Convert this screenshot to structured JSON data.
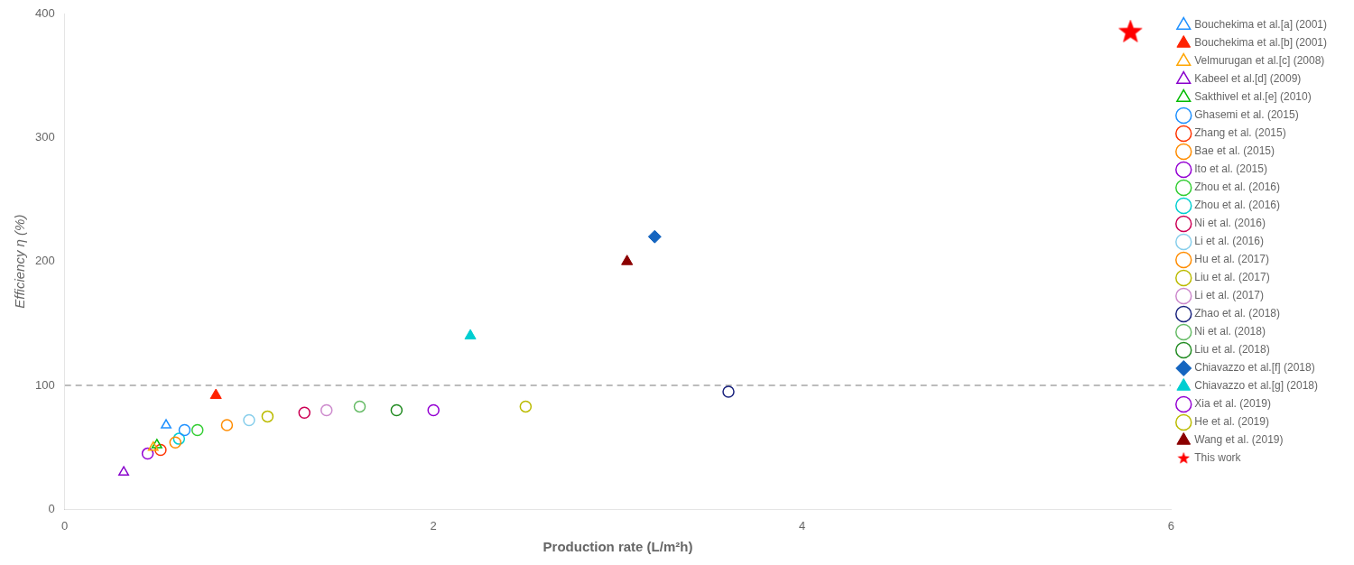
{
  "chart_data": {
    "type": "scatter",
    "xlabel": "Production rate (L/m²h)",
    "ylabel": "Efficiency η (%)",
    "xlim": [
      0,
      6
    ],
    "ylim": [
      0,
      400
    ],
    "xticks": [
      0,
      2,
      4,
      6
    ],
    "yticks": [
      0,
      100,
      200,
      300,
      400
    ],
    "grid": false,
    "legend": "right",
    "reference_line": {
      "y": 100,
      "line_style": "dashed",
      "color": "gray"
    },
    "series": [
      {
        "name": "Bouchekima et al.[a] (2001)",
        "x": [
          0.55
        ],
        "values": [
          68
        ],
        "marker": "triangle-open",
        "color": "#1E90FF"
      },
      {
        "name": "Bouchekima et al.[b] (2001)",
        "x": [
          0.82
        ],
        "values": [
          92
        ],
        "marker": "triangle",
        "color": "#FF2200"
      },
      {
        "name": "Velmurugan et al.[c] (2008)",
        "x": [
          0.48
        ],
        "values": [
          50
        ],
        "marker": "triangle-open",
        "color": "#FFA500"
      },
      {
        "name": "Kabeel et al.[d] (2009)",
        "x": [
          0.32
        ],
        "values": [
          30
        ],
        "marker": "triangle-open",
        "color": "#8800CC"
      },
      {
        "name": "Sakthivel et al.[e] (2010)",
        "x": [
          0.5
        ],
        "values": [
          52
        ],
        "marker": "triangle-open",
        "color": "#00BB00"
      },
      {
        "name": "Ghasemi et al. (2015)",
        "x": [
          0.65
        ],
        "values": [
          64
        ],
        "marker": "circle-open",
        "color": "#1E90FF"
      },
      {
        "name": "Zhang et al. (2015)",
        "x": [
          0.52
        ],
        "values": [
          48
        ],
        "marker": "circle-open",
        "color": "#FF3300"
      },
      {
        "name": "Bae et al. (2015)",
        "x": [
          0.6
        ],
        "values": [
          54
        ],
        "marker": "circle-open",
        "color": "#FF8C00"
      },
      {
        "name": "Ito et al. (2015)",
        "x": [
          0.45
        ],
        "values": [
          45
        ],
        "marker": "circle-open",
        "color": "#9400D3"
      },
      {
        "name": "Zhou et al. (2016)",
        "x": [
          0.72
        ],
        "values": [
          64
        ],
        "marker": "circle-open",
        "color": "#32CD32"
      },
      {
        "name": "Zhou et al. (2016)",
        "x": [
          0.62
        ],
        "values": [
          57
        ],
        "marker": "circle-open",
        "color": "#00CED1"
      },
      {
        "name": "Ni et al. (2016)",
        "x": [
          1.3
        ],
        "values": [
          78
        ],
        "marker": "circle-open",
        "color": "#CC0055"
      },
      {
        "name": "Li et al. (2016)",
        "x": [
          1.0
        ],
        "values": [
          72
        ],
        "marker": "circle-open",
        "color": "#87CEEB"
      },
      {
        "name": "Hu et al. (2017)",
        "x": [
          0.88
        ],
        "values": [
          68
        ],
        "marker": "circle-open",
        "color": "#FF8C00"
      },
      {
        "name": "Liu et al. (2017)",
        "x": [
          1.1
        ],
        "values": [
          75
        ],
        "marker": "circle-open",
        "color": "#BBBB00"
      },
      {
        "name": "Li et al. (2017)",
        "x": [
          1.42
        ],
        "values": [
          80
        ],
        "marker": "circle-open",
        "color": "#CC88CC"
      },
      {
        "name": "Zhao et al. (2018)",
        "x": [
          3.6
        ],
        "values": [
          95
        ],
        "marker": "circle-open",
        "color": "#1A237E"
      },
      {
        "name": "Ni et al. (2018)",
        "x": [
          1.6
        ],
        "values": [
          83
        ],
        "marker": "circle-open",
        "color": "#66BB66"
      },
      {
        "name": "Liu et al. (2018)",
        "x": [
          1.8
        ],
        "values": [
          80
        ],
        "marker": "circle-open",
        "color": "#228B22"
      },
      {
        "name": "Chiavazzo et al.[f] (2018)",
        "x": [
          3.2
        ],
        "values": [
          220
        ],
        "marker": "diamond",
        "color": "#1565C0"
      },
      {
        "name": "Chiavazzo et al.[g] (2018)",
        "x": [
          2.2
        ],
        "values": [
          140
        ],
        "marker": "triangle",
        "color": "#00CED1"
      },
      {
        "name": "Xia et al. (2019)",
        "x": [
          2.0
        ],
        "values": [
          80
        ],
        "marker": "circle-open",
        "color": "#9400D3"
      },
      {
        "name": "He et al. (2019)",
        "x": [
          2.5
        ],
        "values": [
          83
        ],
        "marker": "circle-open",
        "color": "#BBBB00"
      },
      {
        "name": "Wang et al. (2019)",
        "x": [
          3.05
        ],
        "values": [
          200
        ],
        "marker": "triangle",
        "color": "#8B0000"
      },
      {
        "name": "This work",
        "x": [
          5.78
        ],
        "values": [
          385
        ],
        "marker": "star",
        "color": "#FF0000"
      }
    ]
  }
}
